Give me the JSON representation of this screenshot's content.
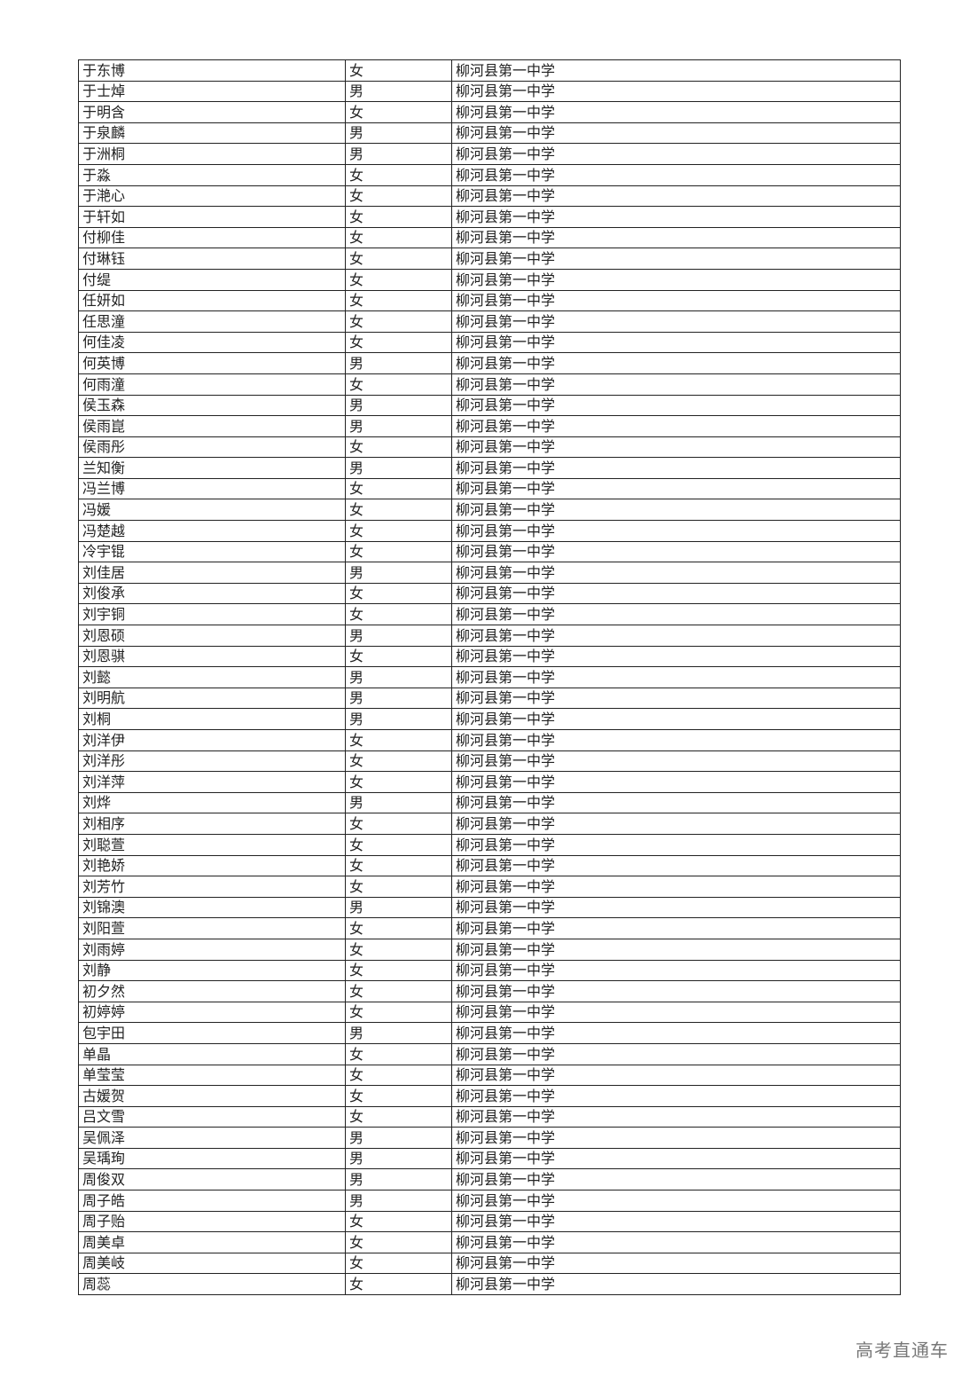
{
  "table": {
    "rows": [
      {
        "name": "于东博",
        "gender": "女",
        "school": "柳河县第一中学"
      },
      {
        "name": "于士焯",
        "gender": "男",
        "school": "柳河县第一中学"
      },
      {
        "name": "于明含",
        "gender": "女",
        "school": "柳河县第一中学"
      },
      {
        "name": "于泉麟",
        "gender": "男",
        "school": "柳河县第一中学"
      },
      {
        "name": "于洲桐",
        "gender": "男",
        "school": "柳河县第一中学"
      },
      {
        "name": "于淼",
        "gender": "女",
        "school": "柳河县第一中学"
      },
      {
        "name": "于滟心",
        "gender": "女",
        "school": "柳河县第一中学"
      },
      {
        "name": "于轩如",
        "gender": "女",
        "school": "柳河县第一中学"
      },
      {
        "name": "付柳佳",
        "gender": "女",
        "school": "柳河县第一中学"
      },
      {
        "name": "付琳钰",
        "gender": "女",
        "school": "柳河县第一中学"
      },
      {
        "name": "付缇",
        "gender": "女",
        "school": "柳河县第一中学"
      },
      {
        "name": "任妍如",
        "gender": "女",
        "school": "柳河县第一中学"
      },
      {
        "name": "任思潼",
        "gender": "女",
        "school": "柳河县第一中学"
      },
      {
        "name": "何佳凌",
        "gender": "女",
        "school": "柳河县第一中学"
      },
      {
        "name": "何英博",
        "gender": "男",
        "school": "柳河县第一中学"
      },
      {
        "name": "何雨潼",
        "gender": "女",
        "school": "柳河县第一中学"
      },
      {
        "name": "侯玉森",
        "gender": "男",
        "school": "柳河县第一中学"
      },
      {
        "name": "侯雨崑",
        "gender": "男",
        "school": "柳河县第一中学"
      },
      {
        "name": "侯雨彤",
        "gender": "女",
        "school": "柳河县第一中学"
      },
      {
        "name": "兰知衡",
        "gender": "男",
        "school": "柳河县第一中学"
      },
      {
        "name": "冯兰博",
        "gender": "女",
        "school": "柳河县第一中学"
      },
      {
        "name": "冯媛",
        "gender": "女",
        "school": "柳河县第一中学"
      },
      {
        "name": "冯楚越",
        "gender": "女",
        "school": "柳河县第一中学"
      },
      {
        "name": "冷宇锟",
        "gender": "女",
        "school": "柳河县第一中学"
      },
      {
        "name": "刘佳居",
        "gender": "男",
        "school": "柳河县第一中学"
      },
      {
        "name": "刘俊承",
        "gender": "女",
        "school": "柳河县第一中学"
      },
      {
        "name": "刘宇铜",
        "gender": "女",
        "school": "柳河县第一中学"
      },
      {
        "name": "刘恩硕",
        "gender": "男",
        "school": "柳河县第一中学"
      },
      {
        "name": "刘恩骐",
        "gender": "女",
        "school": "柳河县第一中学"
      },
      {
        "name": "刘懿",
        "gender": "男",
        "school": "柳河县第一中学"
      },
      {
        "name": "刘明航",
        "gender": "男",
        "school": "柳河县第一中学"
      },
      {
        "name": "刘桐",
        "gender": "男",
        "school": "柳河县第一中学"
      },
      {
        "name": "刘洋伊",
        "gender": "女",
        "school": "柳河县第一中学"
      },
      {
        "name": "刘洋彤",
        "gender": "女",
        "school": "柳河县第一中学"
      },
      {
        "name": "刘洋萍",
        "gender": "女",
        "school": "柳河县第一中学"
      },
      {
        "name": "刘烨",
        "gender": "男",
        "school": "柳河县第一中学"
      },
      {
        "name": "刘相序",
        "gender": "女",
        "school": "柳河县第一中学"
      },
      {
        "name": "刘聪萱",
        "gender": "女",
        "school": "柳河县第一中学"
      },
      {
        "name": "刘艳娇",
        "gender": "女",
        "school": "柳河县第一中学"
      },
      {
        "name": "刘芳竹",
        "gender": "女",
        "school": "柳河县第一中学"
      },
      {
        "name": "刘锦澳",
        "gender": "男",
        "school": "柳河县第一中学"
      },
      {
        "name": "刘阳萱",
        "gender": "女",
        "school": "柳河县第一中学"
      },
      {
        "name": "刘雨婷",
        "gender": "女",
        "school": "柳河县第一中学"
      },
      {
        "name": "刘静",
        "gender": "女",
        "school": "柳河县第一中学"
      },
      {
        "name": "初夕然",
        "gender": "女",
        "school": "柳河县第一中学"
      },
      {
        "name": "初婷婷",
        "gender": "女",
        "school": "柳河县第一中学"
      },
      {
        "name": "包宇田",
        "gender": "男",
        "school": "柳河县第一中学"
      },
      {
        "name": "单晶",
        "gender": "女",
        "school": "柳河县第一中学"
      },
      {
        "name": "单莹莹",
        "gender": "女",
        "school": "柳河县第一中学"
      },
      {
        "name": "古媛贺",
        "gender": "女",
        "school": "柳河县第一中学"
      },
      {
        "name": "吕文雪",
        "gender": "女",
        "school": "柳河县第一中学"
      },
      {
        "name": "吴佩泽",
        "gender": "男",
        "school": "柳河县第一中学"
      },
      {
        "name": "吴瑀珣",
        "gender": "男",
        "school": "柳河县第一中学"
      },
      {
        "name": "周俊双",
        "gender": "男",
        "school": "柳河县第一中学"
      },
      {
        "name": "周子皓",
        "gender": "男",
        "school": "柳河县第一中学"
      },
      {
        "name": "周子贻",
        "gender": "女",
        "school": "柳河县第一中学"
      },
      {
        "name": "周美卓",
        "gender": "女",
        "school": "柳河县第一中学"
      },
      {
        "name": "周美岐",
        "gender": "女",
        "school": "柳河县第一中学"
      },
      {
        "name": "周蕊",
        "gender": "女",
        "school": "柳河县第一中学"
      }
    ]
  },
  "watermark": "高考直通车"
}
